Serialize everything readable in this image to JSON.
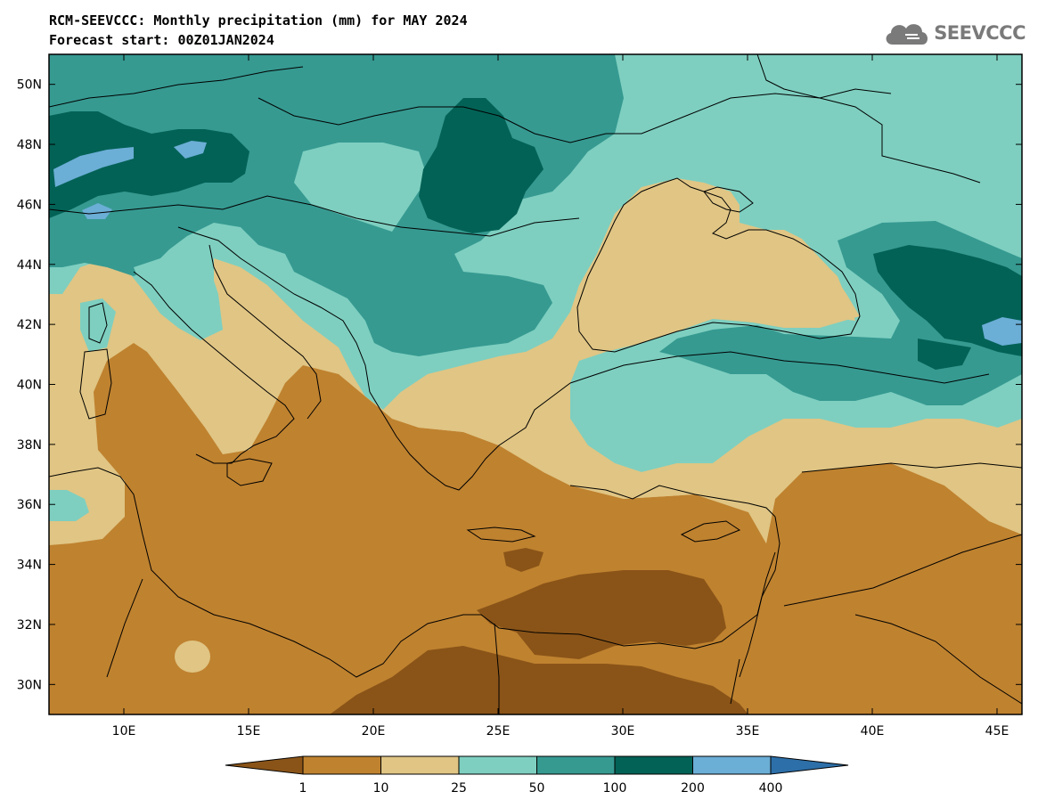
{
  "header": {
    "title": "RCM-SEEVCCC: Monthly precipitation (mm) for MAY 2024",
    "subtitle": "Forecast start: 00Z01JAN2024"
  },
  "logo": {
    "text": "SEEVCCC",
    "icon": "cloud-icon"
  },
  "map": {
    "projection": "lat-lon",
    "lon_range": [
      7,
      46
    ],
    "lat_range": [
      29,
      51
    ],
    "lon_ticks": [
      "10E",
      "15E",
      "20E",
      "25E",
      "30E",
      "35E",
      "40E",
      "45E"
    ],
    "lat_ticks": [
      "30N",
      "32N",
      "34N",
      "36N",
      "38N",
      "40N",
      "42N",
      "44N",
      "46N",
      "48N",
      "50N"
    ],
    "variable": "Monthly precipitation (mm)"
  },
  "colorbar": {
    "labels": [
      "1",
      "10",
      "25",
      "50",
      "100",
      "200",
      "400"
    ],
    "colors": [
      "#8a5418",
      "#bf822f",
      "#e0c584",
      "#7ecfc0",
      "#369a91",
      "#036256",
      "#6baed6",
      "#2d6fa8"
    ]
  }
}
